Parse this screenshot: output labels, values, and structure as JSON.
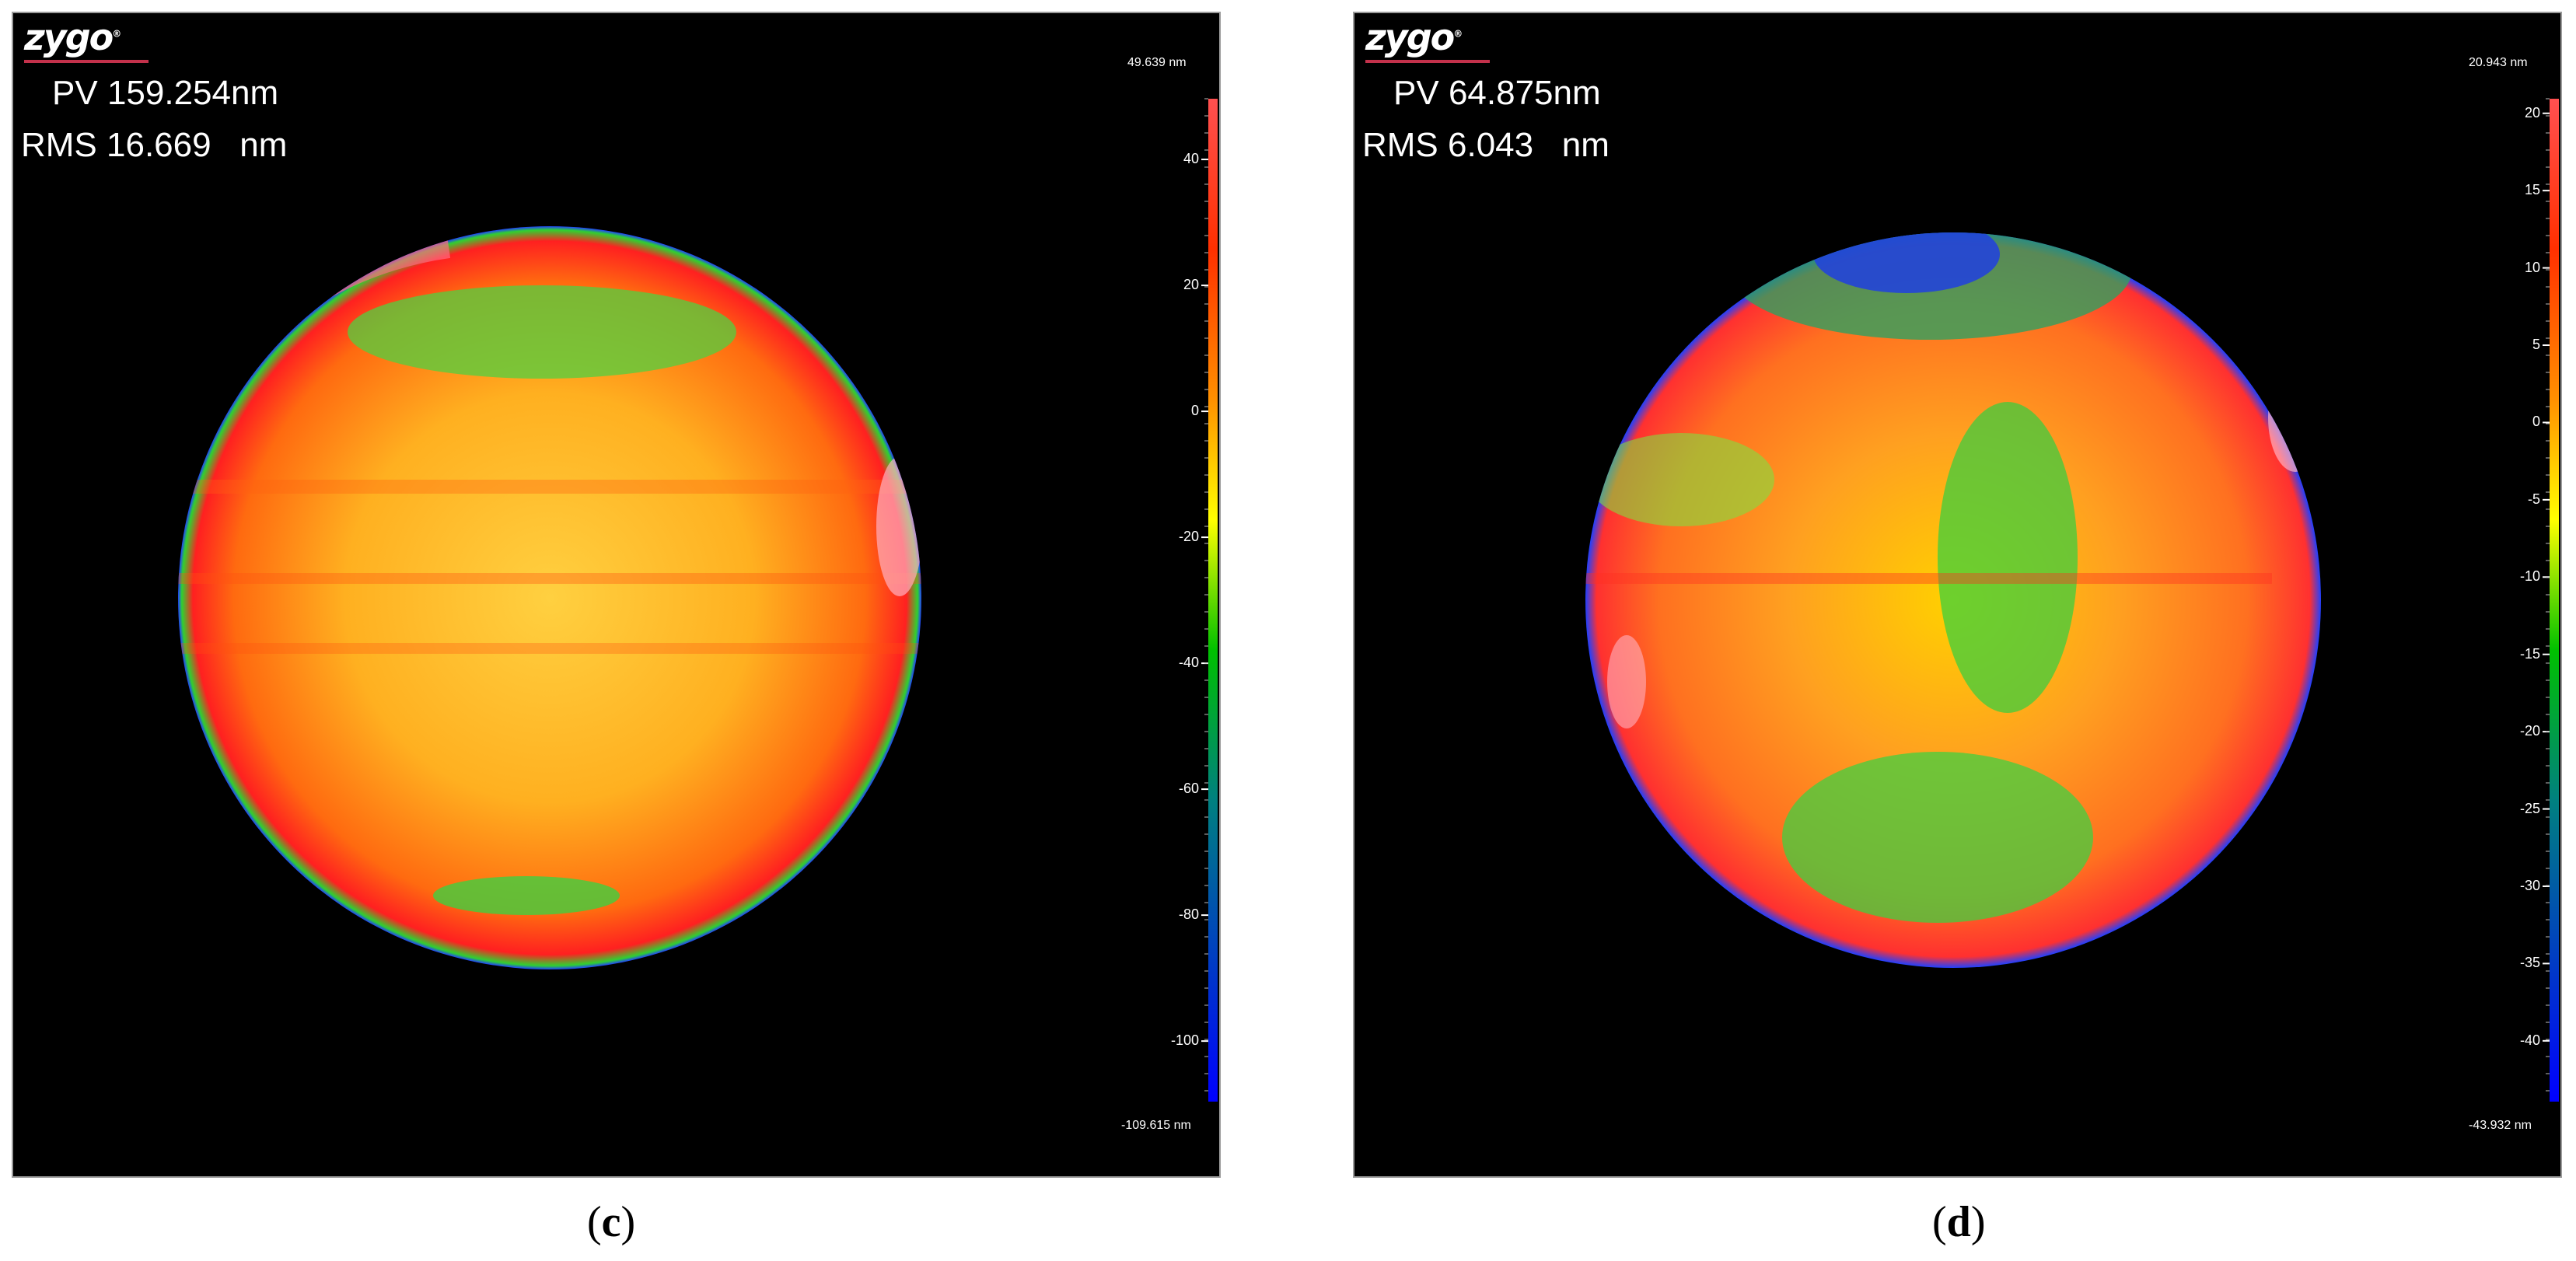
{
  "panels": [
    {
      "id": "c",
      "logo": "zygo",
      "logo_mark": "®",
      "pv_label": "PV",
      "pv_value": "159.254nm",
      "rms_label": "RMS",
      "rms_value": "16.669   nm",
      "scale_max": "49.639 nm",
      "scale_min": "-109.615 nm",
      "ticks": [
        "40",
        "20",
        "0",
        "-20",
        "-40",
        "-60",
        "-80",
        "-100"
      ],
      "tick_values": [
        40,
        20,
        0,
        -20,
        -40,
        -60,
        -80,
        -100
      ],
      "range": [
        -109.615,
        49.639
      ],
      "caption_open": "(",
      "caption_letter": "c",
      "caption_close": ")"
    },
    {
      "id": "d",
      "logo": "zygo",
      "logo_mark": "®",
      "pv_label": "PV",
      "pv_value": "64.875nm",
      "rms_label": "RMS",
      "rms_value": "6.043   nm",
      "scale_max": "20.943 nm",
      "scale_min": "-43.932 nm",
      "ticks": [
        "20",
        "15",
        "10",
        "5",
        "0",
        "-5",
        "-10",
        "-15",
        "-20",
        "-25",
        "-30",
        "-35",
        "-40"
      ],
      "tick_values": [
        20,
        15,
        10,
        5,
        0,
        -5,
        -10,
        -15,
        -20,
        -25,
        -30,
        -35,
        -40
      ],
      "range": [
        -43.932,
        20.943
      ],
      "caption_open": "(",
      "caption_letter": "d",
      "caption_close": ")"
    }
  ],
  "colors": {
    "background": "#000000",
    "scale_top": "#ff3030",
    "scale_upper": "#ff8000",
    "scale_mid": "#ffff00",
    "scale_lower": "#00c000",
    "scale_bottom": "#0000ff"
  }
}
